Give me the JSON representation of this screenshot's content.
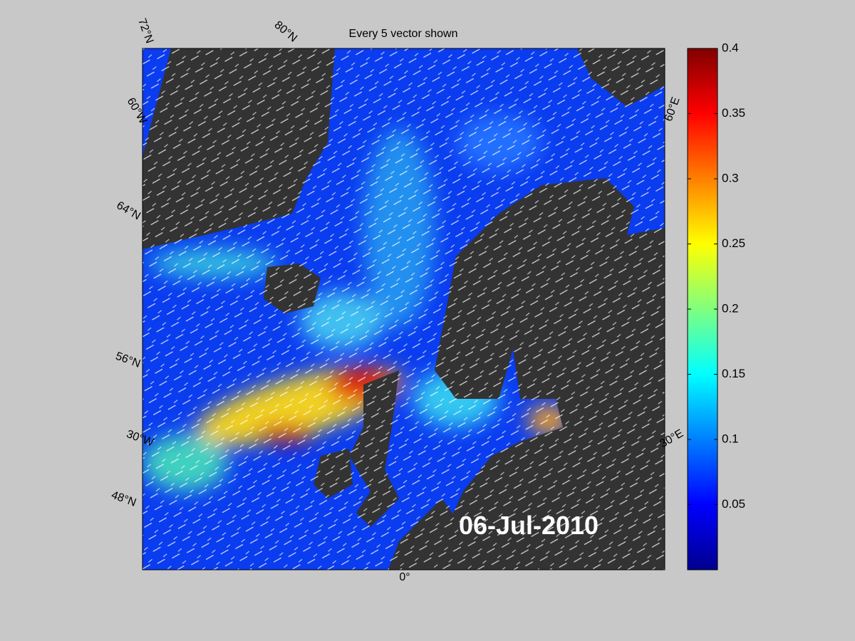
{
  "title": "Every 5 vector shown",
  "date_label": "06-Jul-2010",
  "map_labels": {
    "left": [
      "72°N",
      "60°W",
      "64°N",
      "56°N",
      "30°W",
      "48°N"
    ],
    "top": [
      "80°N"
    ],
    "bottom": [
      "0°"
    ],
    "right": [
      "60°E",
      "30°E"
    ]
  },
  "colorbar": {
    "lim": [
      0,
      0.4
    ],
    "ticks": [
      0.05,
      0.1,
      0.15,
      0.2,
      0.25,
      0.3,
      0.35,
      0.4
    ]
  }
}
